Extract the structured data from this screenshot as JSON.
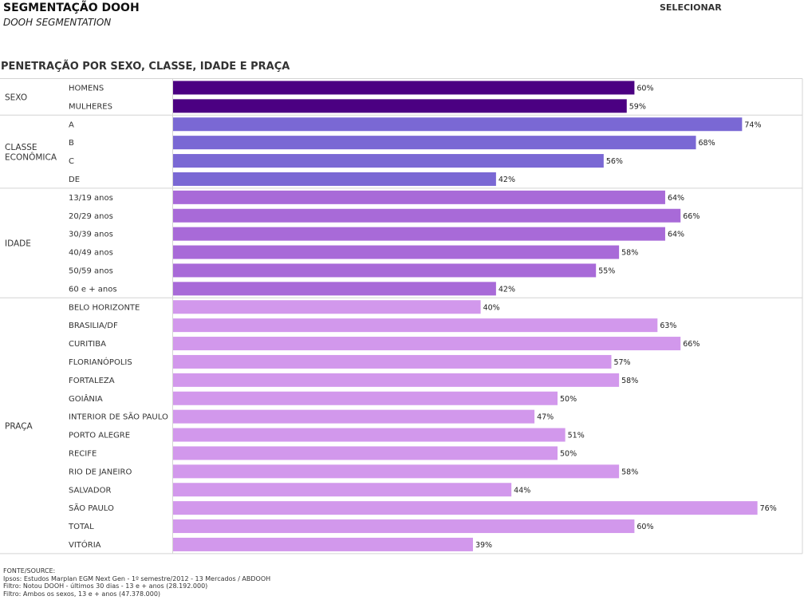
{
  "header": {
    "title": "SEGMENTAÇÃO DOOH",
    "subtitle": "DOOH SEGMENTATION",
    "select_label": "SELECIONAR"
  },
  "section_title": "PENETRAÇÃO POR SEXO, CLASSE, IDADE E PRAÇA",
  "colors": {
    "grid": "#d4d4d4",
    "groups": [
      "#4b0082",
      "#7a68d4",
      "#a86ad8",
      "#d298ec"
    ]
  },
  "chart_data": {
    "type": "bar",
    "orientation": "horizontal",
    "xlim": [
      0,
      100
    ],
    "value_suffix": "%",
    "groups": [
      {
        "label": "SEXO",
        "categories": [
          "HOMENS",
          "MULHERES"
        ],
        "values": [
          60,
          59
        ]
      },
      {
        "label": "CLASSE ECONÔMICA",
        "categories": [
          "A",
          "B",
          "C",
          "DE"
        ],
        "values": [
          74,
          68,
          56,
          42
        ]
      },
      {
        "label": "IDADE",
        "categories": [
          "13/19 anos",
          "20/29 anos",
          "30/39 anos",
          "40/49 anos",
          "50/59 anos",
          "60 e + anos"
        ],
        "values": [
          64,
          66,
          64,
          58,
          55,
          42
        ]
      },
      {
        "label": "PRAÇA",
        "categories": [
          "BELO HORIZONTE",
          "BRASILIA/DF",
          "CURITIBA",
          "FLORIANÓPOLIS",
          "FORTALEZA",
          "GOIÂNIA",
          "INTERIOR DE SÃO PAULO",
          "PORTO ALEGRE",
          "RECIFE",
          "RIO DE JANEIRO",
          "SALVADOR",
          "SÃO PAULO",
          "TOTAL",
          "VITÓRIA"
        ],
        "values": [
          40,
          63,
          66,
          57,
          58,
          50,
          47,
          51,
          50,
          58,
          44,
          76,
          60,
          39
        ]
      }
    ]
  },
  "footer": {
    "lines": [
      "FONTE/SOURCE:",
      "Ipsos: Estudos Marplan EGM Next Gen - 1º semestre/2012 - 13 Mercados / ABDOOH",
      "Filtro: Notou DOOH - últimos 30 dias - 13 e + anos (28.192.000)",
      "Filtro: Ambos os sexos, 13 e + anos (47.378.000)"
    ]
  }
}
